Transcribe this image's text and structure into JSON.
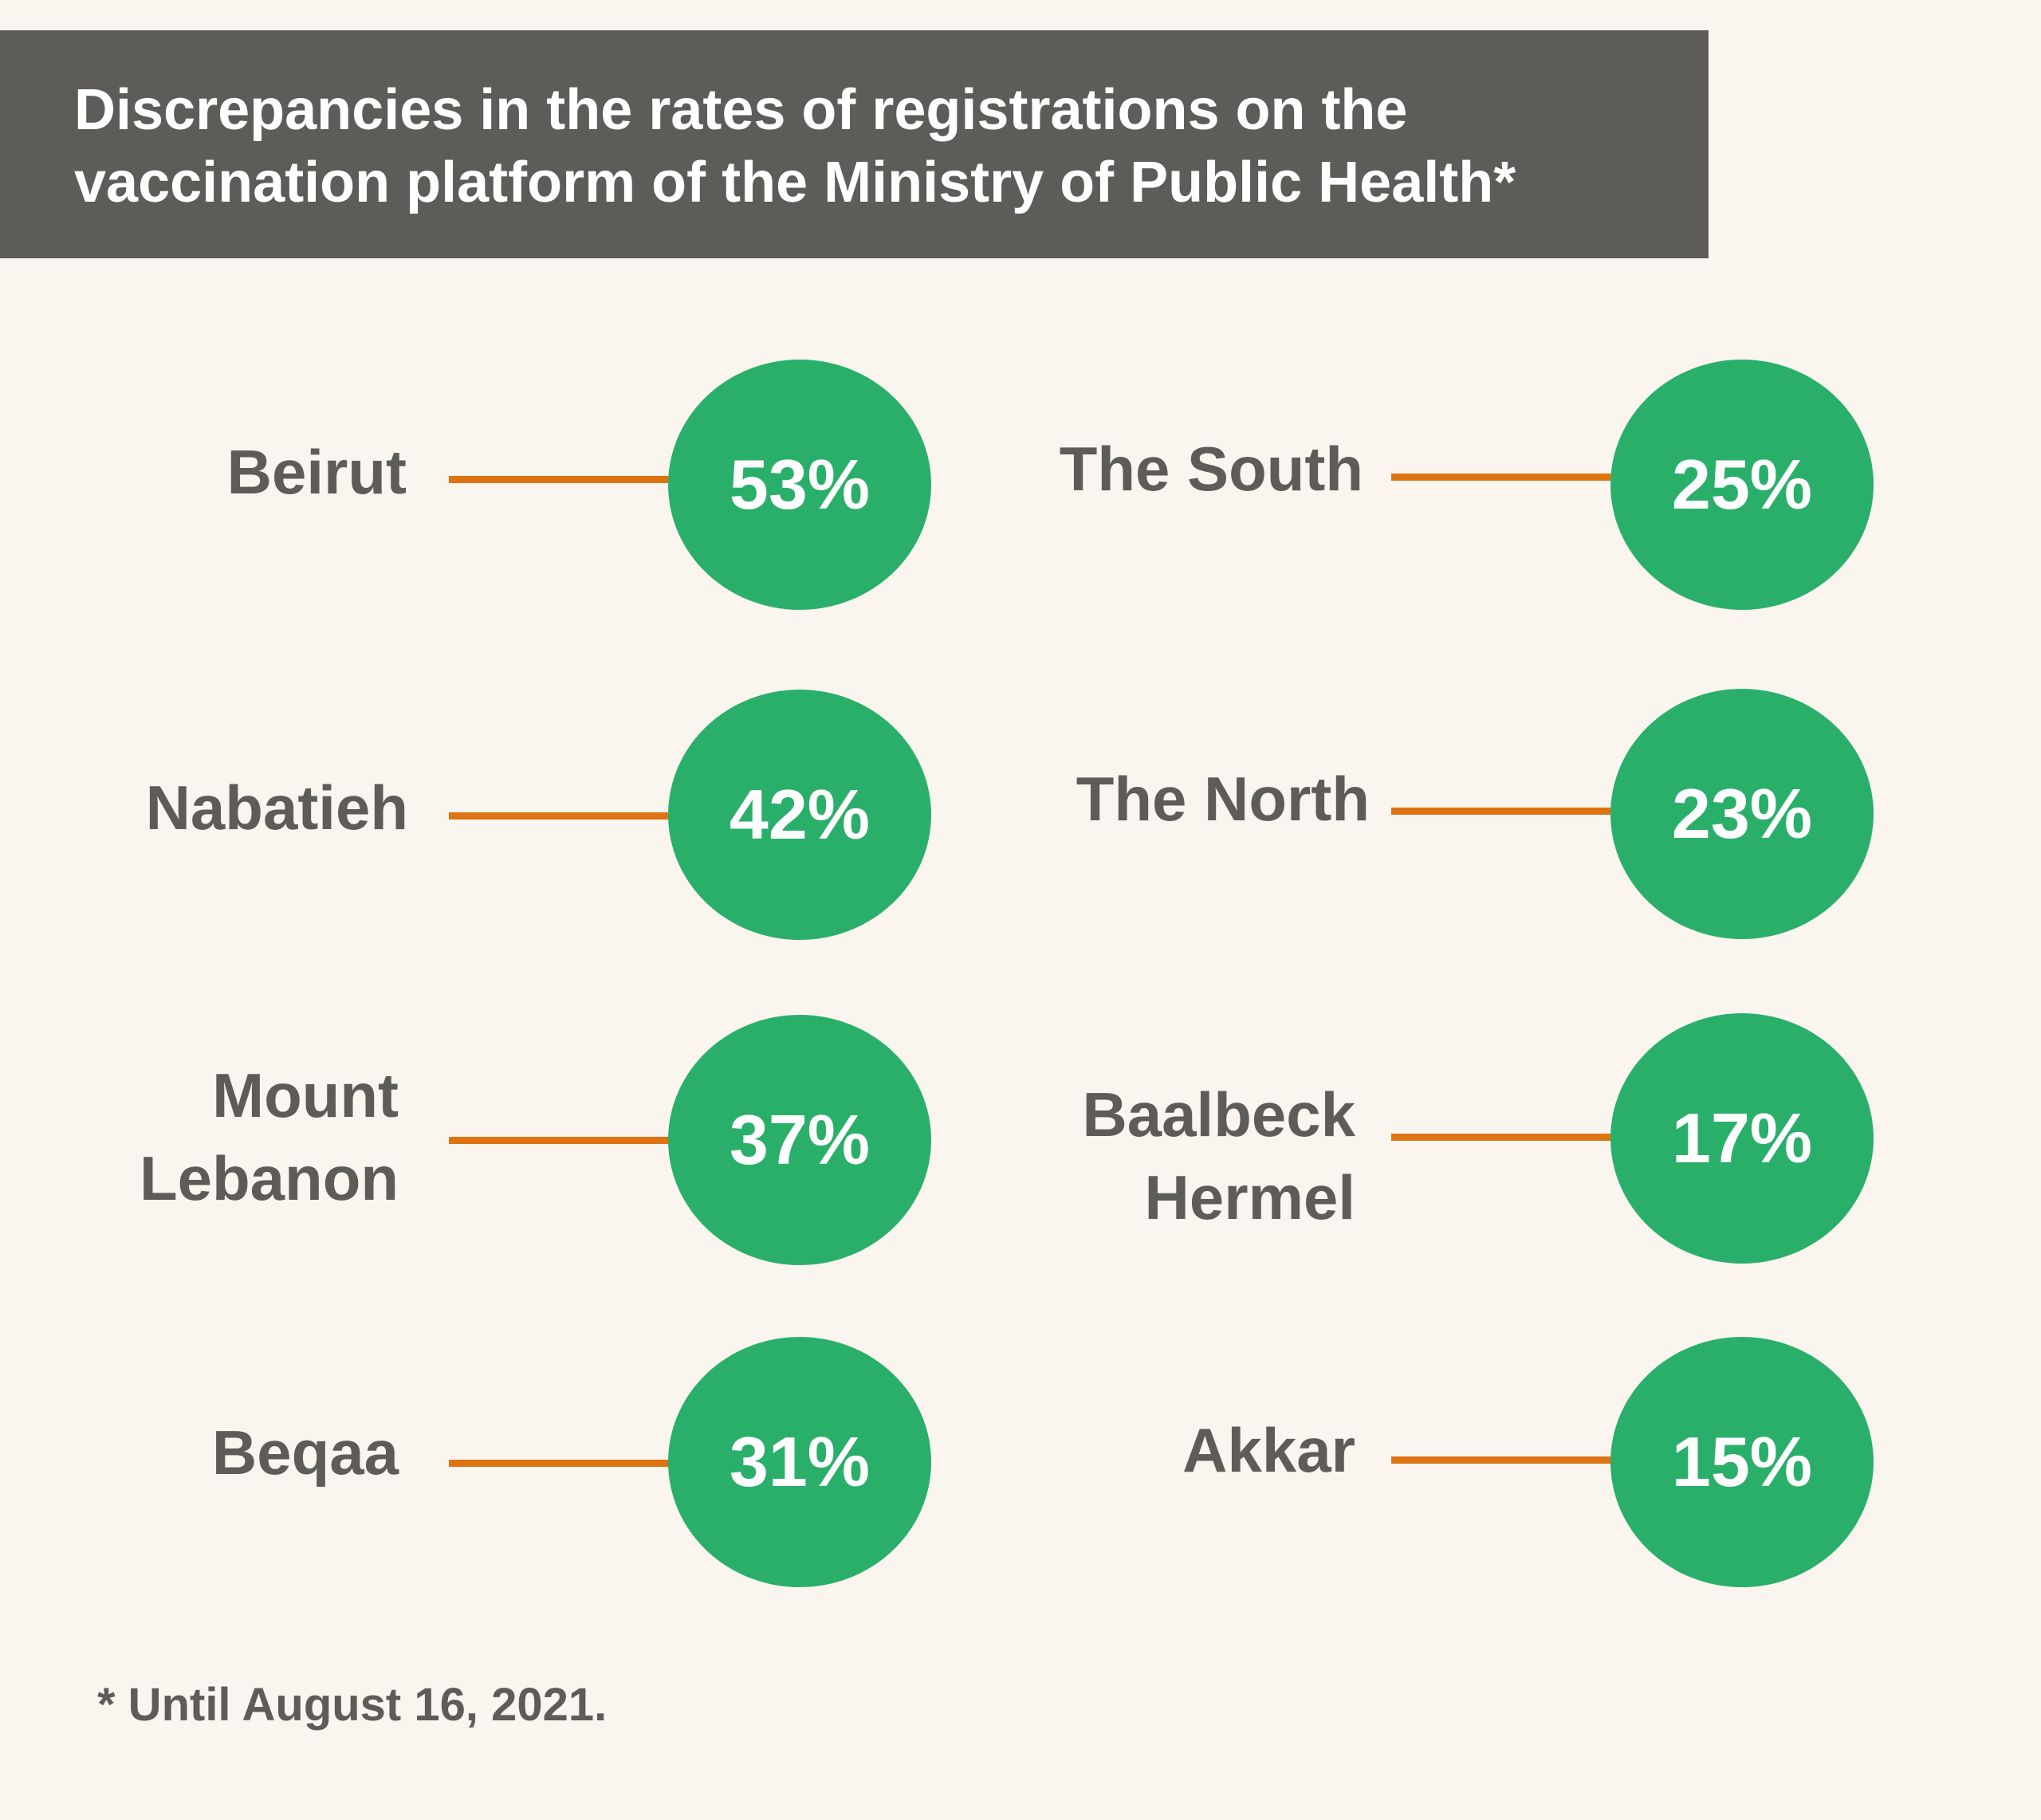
{
  "title": {
    "line1": "Discrepancies in the rates of registrations on the",
    "line2": "vaccination platform of the Ministry of Public Health*"
  },
  "left_column": [
    {
      "label": "Beirut",
      "value": "53%"
    },
    {
      "label": "Nabatieh",
      "value": "42%"
    },
    {
      "label": "Mount\nLebanon",
      "value": "37%"
    },
    {
      "label": "Beqaa",
      "value": "31%"
    }
  ],
  "right_column": [
    {
      "label": "The South",
      "value": "25%"
    },
    {
      "label": "The North",
      "value": "23%"
    },
    {
      "label": "Baalbeck\nHermel",
      "value": "17%"
    },
    {
      "label": "Akkar",
      "value": "15%"
    }
  ],
  "footnote": "* Until August 16, 2021.",
  "colors": {
    "background": "#faf5ef",
    "banner": "#5d5c58",
    "bubble": "#2aaf6b",
    "connector": "#de7312",
    "label_text": "#5d5c58"
  }
}
